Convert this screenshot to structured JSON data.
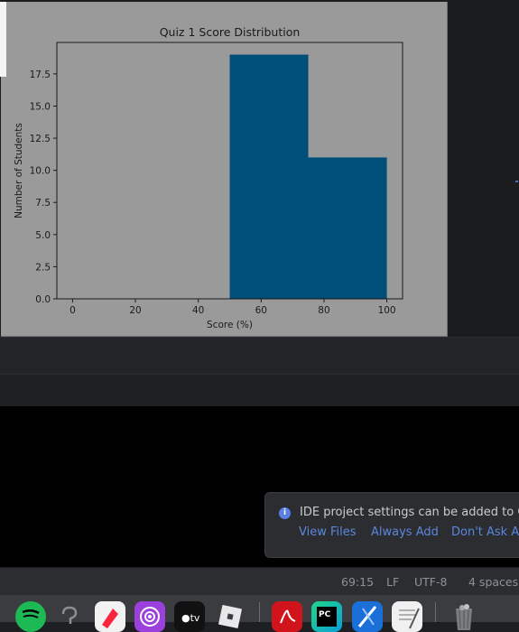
{
  "plot": {
    "chart_data": {
      "type": "bar",
      "title": "Quiz 1 Score Distribution",
      "xlabel": "Score (%)",
      "ylabel": "Number of Students",
      "bins": [
        {
          "start": 0,
          "end": 25,
          "count": 0
        },
        {
          "start": 25,
          "end": 50,
          "count": 0
        },
        {
          "start": 50,
          "end": 75,
          "count": 19
        },
        {
          "start": 75,
          "end": 100,
          "count": 11
        }
      ],
      "xlim": [
        -5,
        105
      ],
      "ylim": [
        0,
        19.95
      ],
      "xticks": [
        0,
        20,
        40,
        60,
        80,
        100
      ],
      "xtick_labels": [
        "0",
        "20",
        "40",
        "60",
        "80",
        "100"
      ],
      "yticks": [
        0,
        2.5,
        5,
        7.5,
        10,
        12.5,
        15,
        17.5
      ],
      "ytick_labels": [
        "0.0",
        "2.5",
        "5.0",
        "7.5",
        "10.0",
        "12.5",
        "15.0",
        "17.5"
      ],
      "bar_color": "#004f78",
      "grid": false
    }
  },
  "notification": {
    "message": "IDE project settings can be added to Git",
    "actions": [
      "View Files",
      "Always Add",
      "Don't Ask Again"
    ]
  },
  "status_bar": {
    "position": "69:15",
    "line_ending": "LF",
    "encoding": "UTF-8",
    "indent": "4 spaces"
  },
  "dock": {
    "items": [
      "spotify-icon",
      "help-icon",
      "news-icon",
      "podcasts-icon",
      "apple-tv-icon",
      "roblox-icon",
      "acrobat-icon",
      "pycharm-icon",
      "xcode-icon",
      "textedit-icon",
      "trash-icon"
    ]
  }
}
